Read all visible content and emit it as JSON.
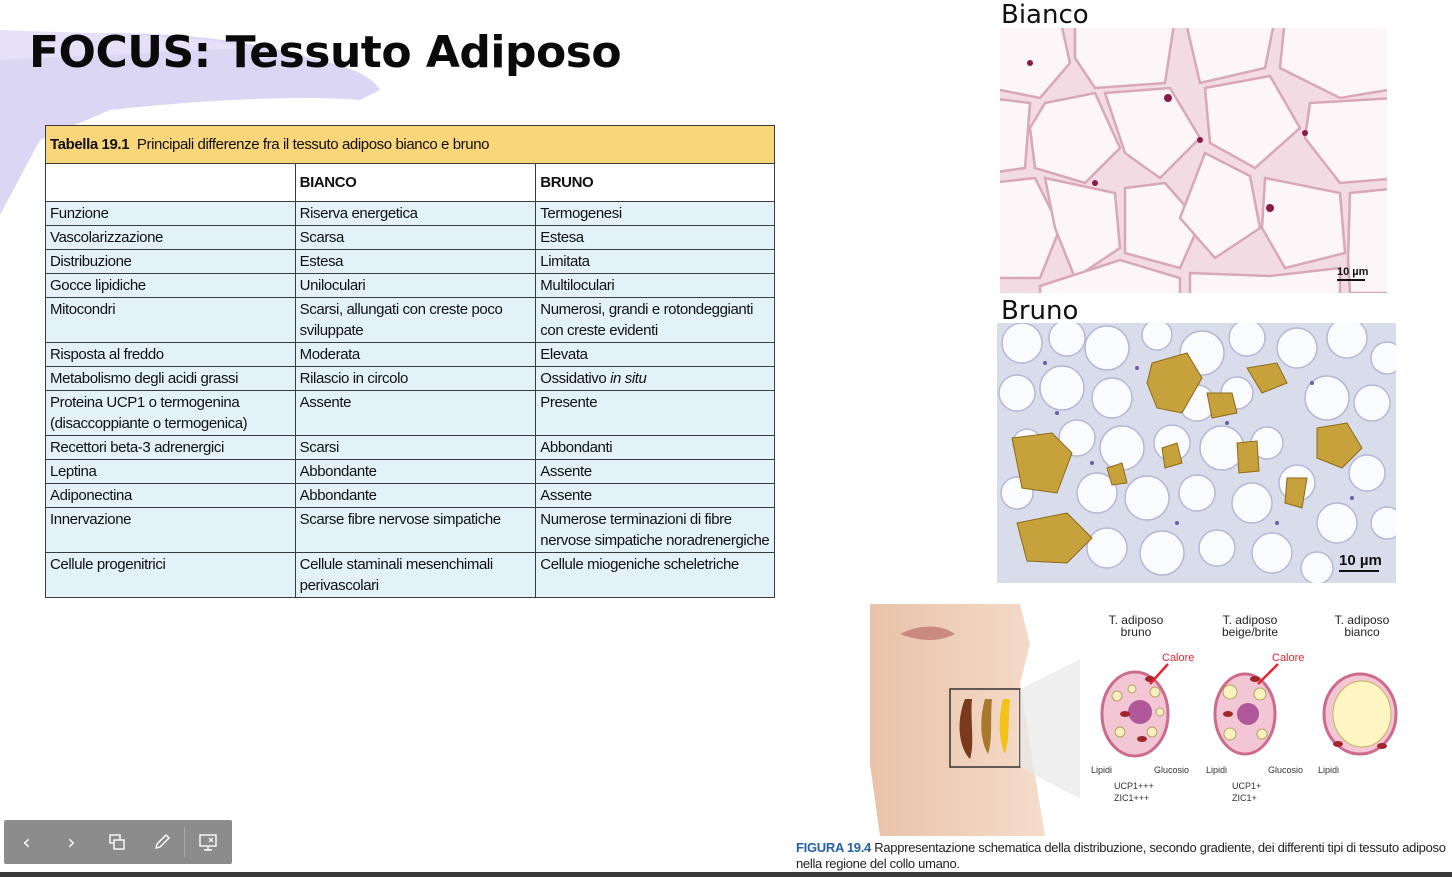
{
  "slide": {
    "title": "FOCUS: Tessuto Adiposo",
    "accent_color": "#dcd6f5"
  },
  "table": {
    "caption_number": "Tabella 19.1",
    "caption_text": "Principali differenze fra il tessuto adiposo bianco e bruno",
    "headers": [
      "",
      "BIANCO",
      "BRUNO"
    ],
    "rows": [
      [
        "Funzione",
        "Riserva energetica",
        "Termogenesi"
      ],
      [
        "Vascolarizzazione",
        "Scarsa",
        "Estesa"
      ],
      [
        "Distribuzione",
        "Estesa",
        "Limitata"
      ],
      [
        "Gocce lipidiche",
        "Uniloculari",
        "Multiloculari"
      ],
      [
        "Mitocondri",
        "Scarsi, allungati con creste poco sviluppate",
        "Numerosi, grandi e rotondeggianti con creste evidenti"
      ],
      [
        "Risposta al freddo",
        "Moderata",
        "Elevata"
      ],
      [
        "Metabolismo degli acidi grassi",
        "Rilascio in circolo",
        "Ossidativo in situ"
      ],
      [
        "Proteina UCP1 o termogenina (disaccoppiante o termogenica)",
        "Assente",
        "Presente"
      ],
      [
        "Recettori beta-3 adrenergici",
        "Scarsi",
        "Abbondanti"
      ],
      [
        "Leptina",
        "Abbondante",
        "Assente"
      ],
      [
        "Adiponectina",
        "Abbondante",
        "Assente"
      ],
      [
        "Innervazione",
        "Scarse fibre nervose simpatiche",
        "Numerose terminazioni di fibre nervose simpatiche noradrenergiche"
      ],
      [
        "Cellule progenitrici",
        "Cellule staminali mesenchimali perivascolari",
        "Cellule miogeniche scheletriche"
      ]
    ]
  },
  "images": {
    "white_label": "Bianco",
    "brown_label": "Bruno",
    "scale_white": "10 µm",
    "scale_brown": "10 µm"
  },
  "figure": {
    "col1": "T. adiposo bruno",
    "col2": "T. adiposo beige/brite",
    "col3": "T. adiposo bianco",
    "heat1": "Calore",
    "heat2": "Calore",
    "lipidi1": "Lipidi",
    "glucosio1": "Glucosio",
    "lipidi2": "Lipidi",
    "glucosio2": "Glucosio",
    "lipidi3": "Lipidi",
    "markers1_a": "UCP1+++",
    "markers1_b": "ZIC1+++",
    "markers2_a": "UCP1+",
    "markers2_b": "ZIC1+",
    "caption_label": "FIGURA 19.4",
    "caption_text": "Rappresentazione schematica della distribuzione, secondo gradiente, dei differenti tipi di tessuto adiposo nella regione del collo umano."
  },
  "toolbar": {
    "buttons": [
      "previous-slide",
      "next-slide",
      "slide-overview",
      "pen-tool",
      "presenter-view"
    ]
  }
}
